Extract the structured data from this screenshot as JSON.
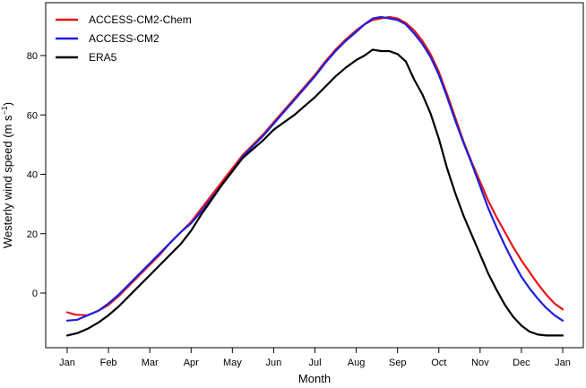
{
  "chart_data": {
    "type": "line",
    "xlabel": "Month",
    "ylabel_main": "Westerly wind speed (m s",
    "ylabel_sup": "−1",
    "ylabel_close": ")",
    "xlim": [
      0,
      12
    ],
    "ylim": [
      -16,
      96
    ],
    "x_ticks": [
      {
        "value": 0,
        "label": "Jan"
      },
      {
        "value": 1,
        "label": "Feb"
      },
      {
        "value": 2,
        "label": "Mar"
      },
      {
        "value": 3,
        "label": "Apr"
      },
      {
        "value": 4,
        "label": "May"
      },
      {
        "value": 5,
        "label": "Jun"
      },
      {
        "value": 6,
        "label": "Jul"
      },
      {
        "value": 7,
        "label": "Aug"
      },
      {
        "value": 8,
        "label": "Sep"
      },
      {
        "value": 9,
        "label": "Oct"
      },
      {
        "value": 10,
        "label": "Nov"
      },
      {
        "value": 11,
        "label": "Dec"
      },
      {
        "value": 12,
        "label": "Jan"
      }
    ],
    "y_ticks": [
      0,
      20,
      40,
      60,
      80
    ],
    "legend_position": "top-left",
    "series": [
      {
        "name": "ACCESS-CM2-Chem",
        "color": "#e8141b",
        "points": [
          [
            0.0,
            -6.5
          ],
          [
            0.2,
            -7.3
          ],
          [
            0.5,
            -7.5
          ],
          [
            0.75,
            -6.0
          ],
          [
            1.0,
            -4.0
          ],
          [
            1.25,
            -1.0
          ],
          [
            1.5,
            2.5
          ],
          [
            1.75,
            6.0
          ],
          [
            2.0,
            9.5
          ],
          [
            2.25,
            13.0
          ],
          [
            2.5,
            17.0
          ],
          [
            2.75,
            20.5
          ],
          [
            3.0,
            24.0
          ],
          [
            3.25,
            28.5
          ],
          [
            3.5,
            33.0
          ],
          [
            3.75,
            37.5
          ],
          [
            4.0,
            42.0
          ],
          [
            4.25,
            46.5
          ],
          [
            4.5,
            50.0
          ],
          [
            4.75,
            53.5
          ],
          [
            5.0,
            57.5
          ],
          [
            5.25,
            61.5
          ],
          [
            5.5,
            65.5
          ],
          [
            5.75,
            69.5
          ],
          [
            6.0,
            73.5
          ],
          [
            6.25,
            78.0
          ],
          [
            6.5,
            82.0
          ],
          [
            6.75,
            85.5
          ],
          [
            7.0,
            88.5
          ],
          [
            7.2,
            90.5
          ],
          [
            7.4,
            92.0
          ],
          [
            7.6,
            92.5
          ],
          [
            7.8,
            93.0
          ],
          [
            8.0,
            92.5
          ],
          [
            8.2,
            91.0
          ],
          [
            8.4,
            88.5
          ],
          [
            8.6,
            85.0
          ],
          [
            8.8,
            80.5
          ],
          [
            9.0,
            74.5
          ],
          [
            9.2,
            67.0
          ],
          [
            9.4,
            59.0
          ],
          [
            9.6,
            51.0
          ],
          [
            9.8,
            44.0
          ],
          [
            10.0,
            37.5
          ],
          [
            10.2,
            31.0
          ],
          [
            10.4,
            25.5
          ],
          [
            10.6,
            20.5
          ],
          [
            10.8,
            15.5
          ],
          [
            11.0,
            11.0
          ],
          [
            11.2,
            7.0
          ],
          [
            11.4,
            3.0
          ],
          [
            11.6,
            -0.5
          ],
          [
            11.8,
            -3.5
          ],
          [
            12.0,
            -5.5
          ]
        ]
      },
      {
        "name": "ACCESS-CM2",
        "color": "#1f1fdc",
        "points": [
          [
            0.0,
            -9.3
          ],
          [
            0.25,
            -9.0
          ],
          [
            0.5,
            -7.5
          ],
          [
            0.75,
            -6.0
          ],
          [
            1.0,
            -3.5
          ],
          [
            1.25,
            -0.5
          ],
          [
            1.5,
            3.0
          ],
          [
            1.75,
            6.5
          ],
          [
            2.0,
            10.0
          ],
          [
            2.25,
            13.5
          ],
          [
            2.5,
            17.0
          ],
          [
            2.75,
            20.5
          ],
          [
            3.0,
            23.5
          ],
          [
            3.25,
            27.5
          ],
          [
            3.5,
            32.0
          ],
          [
            3.75,
            36.5
          ],
          [
            4.0,
            41.0
          ],
          [
            4.25,
            46.0
          ],
          [
            4.5,
            49.5
          ],
          [
            4.75,
            53.0
          ],
          [
            5.0,
            57.0
          ],
          [
            5.25,
            61.0
          ],
          [
            5.5,
            65.0
          ],
          [
            5.75,
            69.0
          ],
          [
            6.0,
            73.0
          ],
          [
            6.25,
            77.5
          ],
          [
            6.5,
            81.5
          ],
          [
            6.75,
            85.0
          ],
          [
            7.0,
            88.0
          ],
          [
            7.2,
            90.5
          ],
          [
            7.4,
            92.5
          ],
          [
            7.6,
            93.0
          ],
          [
            7.8,
            92.5
          ],
          [
            8.0,
            92.0
          ],
          [
            8.2,
            90.5
          ],
          [
            8.4,
            87.5
          ],
          [
            8.6,
            84.0
          ],
          [
            8.8,
            79.5
          ],
          [
            9.0,
            73.5
          ],
          [
            9.2,
            66.0
          ],
          [
            9.4,
            58.0
          ],
          [
            9.6,
            50.5
          ],
          [
            9.8,
            43.5
          ],
          [
            10.0,
            36.0
          ],
          [
            10.2,
            28.5
          ],
          [
            10.4,
            22.0
          ],
          [
            10.6,
            16.0
          ],
          [
            10.8,
            10.5
          ],
          [
            11.0,
            5.5
          ],
          [
            11.2,
            1.5
          ],
          [
            11.4,
            -2.0
          ],
          [
            11.6,
            -5.0
          ],
          [
            11.8,
            -7.5
          ],
          [
            12.0,
            -9.3
          ]
        ]
      },
      {
        "name": "ERA5",
        "color": "#000000",
        "points": [
          [
            0.0,
            -14.3
          ],
          [
            0.25,
            -13.5
          ],
          [
            0.5,
            -12.0
          ],
          [
            0.75,
            -10.0
          ],
          [
            1.0,
            -7.5
          ],
          [
            1.25,
            -4.5
          ],
          [
            1.5,
            -1.0
          ],
          [
            1.75,
            2.5
          ],
          [
            2.0,
            6.0
          ],
          [
            2.25,
            9.5
          ],
          [
            2.5,
            13.0
          ],
          [
            2.75,
            16.5
          ],
          [
            3.0,
            21.0
          ],
          [
            3.25,
            26.5
          ],
          [
            3.5,
            31.5
          ],
          [
            3.75,
            36.5
          ],
          [
            4.0,
            41.0
          ],
          [
            4.25,
            45.5
          ],
          [
            4.5,
            48.5
          ],
          [
            4.75,
            51.5
          ],
          [
            5.0,
            55.0
          ],
          [
            5.25,
            57.5
          ],
          [
            5.5,
            60.0
          ],
          [
            5.75,
            63.0
          ],
          [
            6.0,
            66.0
          ],
          [
            6.25,
            69.5
          ],
          [
            6.5,
            73.0
          ],
          [
            6.75,
            76.0
          ],
          [
            7.0,
            78.5
          ],
          [
            7.2,
            80.0
          ],
          [
            7.4,
            82.0
          ],
          [
            7.6,
            81.5
          ],
          [
            7.8,
            81.5
          ],
          [
            8.0,
            80.5
          ],
          [
            8.2,
            78.0
          ],
          [
            8.4,
            72.0
          ],
          [
            8.6,
            67.0
          ],
          [
            8.8,
            60.5
          ],
          [
            9.0,
            52.0
          ],
          [
            9.2,
            42.0
          ],
          [
            9.4,
            33.5
          ],
          [
            9.6,
            26.0
          ],
          [
            9.8,
            19.5
          ],
          [
            10.0,
            13.0
          ],
          [
            10.2,
            6.5
          ],
          [
            10.4,
            1.0
          ],
          [
            10.6,
            -4.0
          ],
          [
            10.8,
            -8.0
          ],
          [
            11.0,
            -11.0
          ],
          [
            11.2,
            -13.0
          ],
          [
            11.4,
            -14.0
          ],
          [
            11.6,
            -14.3
          ],
          [
            11.8,
            -14.3
          ],
          [
            12.0,
            -14.3
          ]
        ]
      }
    ]
  }
}
